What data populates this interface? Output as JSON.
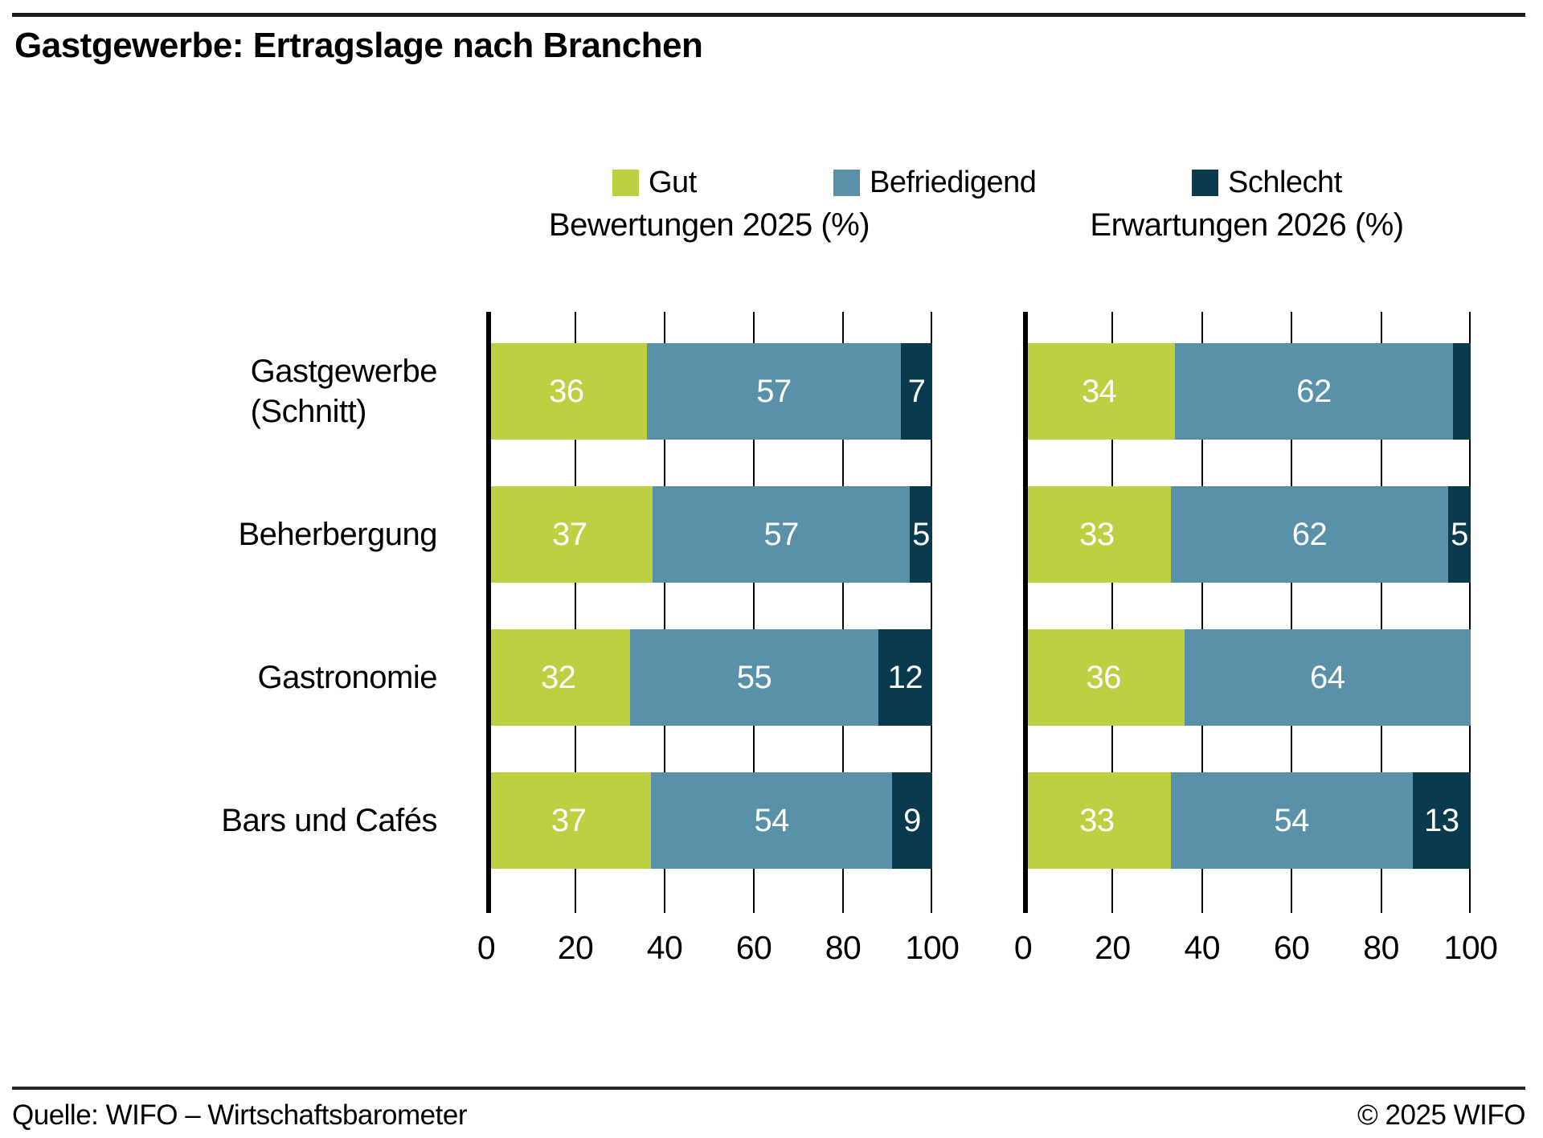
{
  "header": {
    "title": "Gastgewerbe: Ertragslage nach Branchen"
  },
  "legend": {
    "items": [
      {
        "label": "Gut",
        "color": "#bcd042"
      },
      {
        "label": "Befriedigend",
        "color": "#5991ab"
      },
      {
        "label": "Schlecht",
        "color": "#0a3a4e"
      }
    ]
  },
  "chart_data": {
    "type": "bar",
    "orientation": "horizontal",
    "stacked": true,
    "unit": "%",
    "grid": "vertical",
    "legend_position": "top",
    "categories": [
      "Gastgewerbe (Schnitt)",
      "Beherbergung",
      "Gastronomie",
      "Bars und Cafés"
    ],
    "category_lines": [
      [
        "Gastgewerbe",
        "(Schnitt)"
      ],
      [
        "Beherbergung"
      ],
      [
        "Gastronomie"
      ],
      [
        "Bars und Cafés"
      ]
    ],
    "panels": [
      {
        "title": "Bewertungen 2025 (%)",
        "series": [
          {
            "name": "Gut",
            "values": [
              36,
              37,
              32,
              37
            ]
          },
          {
            "name": "Befriedigend",
            "values": [
              57,
              57,
              55,
              54
            ]
          },
          {
            "name": "Schlecht",
            "values": [
              7,
              5,
              12,
              9
            ]
          }
        ]
      },
      {
        "title": "Erwartungen 2026 (%)",
        "series": [
          {
            "name": "Gut",
            "values": [
              34,
              33,
              36,
              33
            ]
          },
          {
            "name": "Befriedigend",
            "values": [
              62,
              62,
              64,
              54
            ]
          },
          {
            "name": "Schlecht",
            "values": [
              4,
              5,
              0,
              13
            ]
          }
        ]
      }
    ],
    "xlim": [
      0,
      100
    ],
    "xticks": [
      0,
      20,
      40,
      60,
      80,
      100
    ],
    "value_label_min": 5
  },
  "footer": {
    "source": "Quelle: WIFO – Wirtschaftsbarometer",
    "copyright": "© 2025 WIFO"
  }
}
